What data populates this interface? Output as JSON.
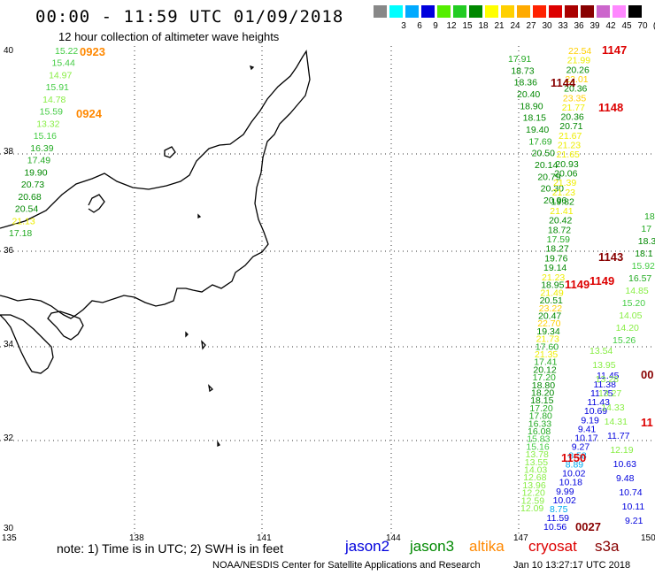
{
  "header": {
    "title": "00:00 - 11:59 UTC 01/09/2018",
    "subtitle": "12 hour collection of altimeter wave heights"
  },
  "color_scale": {
    "unit": "(ft)",
    "bins": [
      {
        "label": "",
        "color": "#888888"
      },
      {
        "label": "3",
        "color": "#00ffff"
      },
      {
        "label": "6",
        "color": "#00aaff"
      },
      {
        "label": "9",
        "color": "#0000dd"
      },
      {
        "label": "12",
        "color": "#55ee00"
      },
      {
        "label": "15",
        "color": "#22cc22"
      },
      {
        "label": "18",
        "color": "#008800"
      },
      {
        "label": "21",
        "color": "#ffff00"
      },
      {
        "label": "24",
        "color": "#ffd000"
      },
      {
        "label": "27",
        "color": "#ffaa00"
      },
      {
        "label": "30",
        "color": "#ff2200"
      },
      {
        "label": "33",
        "color": "#dd0000"
      },
      {
        "label": "36",
        "color": "#aa0000"
      },
      {
        "label": "39",
        "color": "#880000"
      },
      {
        "label": "42",
        "color": "#cc66cc"
      },
      {
        "label": "45",
        "color": "#ff88ff"
      },
      {
        "label": "70",
        "color": "#000000"
      }
    ]
  },
  "axes": {
    "lon_labels": [
      "135",
      "138",
      "141",
      "144",
      "147",
      "150"
    ],
    "lat_labels": [
      "40",
      "38",
      "36",
      "34",
      "32",
      "30"
    ]
  },
  "tracks": [
    {
      "id": "t1",
      "readings": [
        {
          "text": "15.22",
          "color": "#44cc44"
        },
        {
          "text": "15.44",
          "color": "#44cc44"
        },
        {
          "text": "14.97",
          "color": "#88ee44"
        },
        {
          "text": "15.91",
          "color": "#44cc44"
        },
        {
          "text": "14.78",
          "color": "#88ee44"
        },
        {
          "text": "15.59",
          "color": "#44cc44"
        },
        {
          "text": "13.32",
          "color": "#88ee44"
        },
        {
          "text": "15.16",
          "color": "#44cc44"
        },
        {
          "text": "16.39",
          "color": "#22aa22"
        },
        {
          "text": "17.49",
          "color": "#22aa22"
        },
        {
          "text": "19.90",
          "color": "#008800"
        },
        {
          "text": "20.73",
          "color": "#008800"
        },
        {
          "text": "20.68",
          "color": "#008800"
        },
        {
          "text": "20.54",
          "color": "#008800"
        },
        {
          "text": "21.13",
          "color": "#eeee00"
        },
        {
          "text": "17.18",
          "color": "#22aa22"
        }
      ]
    },
    {
      "id": "t2",
      "readings": [
        {
          "text": "17.91",
          "color": "#22aa22"
        },
        {
          "text": "18.73",
          "color": "#008800"
        },
        {
          "text": "18.36",
          "color": "#008800"
        },
        {
          "text": "20.40",
          "color": "#008800"
        },
        {
          "text": "18.90",
          "color": "#008800"
        },
        {
          "text": "18.15",
          "color": "#008800"
        },
        {
          "text": "19.40",
          "color": "#008800"
        },
        {
          "text": "17.69",
          "color": "#22aa22"
        },
        {
          "text": "20.50",
          "color": "#008800"
        },
        {
          "text": "20.14",
          "color": "#008800"
        },
        {
          "text": "20.79",
          "color": "#008800"
        },
        {
          "text": "20.30",
          "color": "#008800"
        },
        {
          "text": "20.96",
          "color": "#008800"
        }
      ]
    },
    {
      "id": "t3",
      "readings": [
        {
          "text": "22.54",
          "color": "#ffd000"
        },
        {
          "text": "21.99",
          "color": "#eeee00"
        },
        {
          "text": "20.26",
          "color": "#008800"
        },
        {
          "text": "22.01",
          "color": "#ffd000"
        },
        {
          "text": "20.36",
          "color": "#008800"
        },
        {
          "text": "23.35",
          "color": "#ffd000"
        },
        {
          "text": "21.77",
          "color": "#eeee00"
        },
        {
          "text": "20.36",
          "color": "#008800"
        },
        {
          "text": "20.71",
          "color": "#008800"
        },
        {
          "text": "21.67",
          "color": "#eeee00"
        },
        {
          "text": "21.23",
          "color": "#eeee00"
        },
        {
          "text": "21.65",
          "color": "#eeee00"
        },
        {
          "text": "20.93",
          "color": "#008800"
        },
        {
          "text": "20.06",
          "color": "#008800"
        },
        {
          "text": "21.39",
          "color": "#eeee00"
        },
        {
          "text": "21.23",
          "color": "#eeee00"
        },
        {
          "text": "19.82",
          "color": "#008800"
        },
        {
          "text": "21.41",
          "color": "#eeee00"
        },
        {
          "text": "20.42",
          "color": "#008800"
        },
        {
          "text": "18.72",
          "color": "#008800"
        },
        {
          "text": "17.59",
          "color": "#22aa22"
        },
        {
          "text": "18.27",
          "color": "#008800"
        },
        {
          "text": "19.76",
          "color": "#008800"
        },
        {
          "text": "19.14",
          "color": "#008800"
        }
      ]
    },
    {
      "id": "t4",
      "readings": [
        {
          "text": "21.23",
          "color": "#eeee00"
        },
        {
          "text": "18.95",
          "color": "#008800"
        },
        {
          "text": "21.49",
          "color": "#eeee00"
        },
        {
          "text": "20.51",
          "color": "#008800"
        },
        {
          "text": "23.22",
          "color": "#ffd000"
        },
        {
          "text": "20.47",
          "color": "#008800"
        },
        {
          "text": "22.70",
          "color": "#ffd000"
        },
        {
          "text": "19.34",
          "color": "#008800"
        },
        {
          "text": "21.73",
          "color": "#eeee00"
        },
        {
          "text": "17.60",
          "color": "#22aa22"
        },
        {
          "text": "21.35",
          "color": "#eeee00"
        },
        {
          "text": "17.41",
          "color": "#22aa22"
        },
        {
          "text": "20.12",
          "color": "#008800"
        },
        {
          "text": "17.20",
          "color": "#22aa22"
        },
        {
          "text": "18.80",
          "color": "#008800"
        },
        {
          "text": "18.20",
          "color": "#008800"
        },
        {
          "text": "18.15",
          "color": "#008800"
        },
        {
          "text": "17.20",
          "color": "#22aa22"
        },
        {
          "text": "17.80",
          "color": "#22aa22"
        },
        {
          "text": "16.33",
          "color": "#22aa22"
        },
        {
          "text": "16.08",
          "color": "#22aa22"
        },
        {
          "text": "15.83",
          "color": "#44cc44"
        },
        {
          "text": "15.16",
          "color": "#44cc44"
        },
        {
          "text": "13.78",
          "color": "#88ee44"
        },
        {
          "text": "13.55",
          "color": "#88ee44"
        },
        {
          "text": "14.03",
          "color": "#88ee44"
        },
        {
          "text": "12.68",
          "color": "#88ee44"
        },
        {
          "text": "13.96",
          "color": "#88ee44"
        },
        {
          "text": "12.20",
          "color": "#88ee44"
        },
        {
          "text": "12.59",
          "color": "#88ee44"
        },
        {
          "text": "12.09",
          "color": "#88ee44"
        }
      ]
    },
    {
      "id": "t5",
      "readings": [
        {
          "text": "11.45",
          "color": "#0000dd"
        },
        {
          "text": "11.38",
          "color": "#0000dd"
        },
        {
          "text": "11.75",
          "color": "#0000dd"
        },
        {
          "text": "11.43",
          "color": "#0000dd"
        },
        {
          "text": "10.69",
          "color": "#0000dd"
        },
        {
          "text": "9.19",
          "color": "#0000dd"
        },
        {
          "text": "9.41",
          "color": "#0000dd"
        },
        {
          "text": "10.17",
          "color": "#0000dd"
        },
        {
          "text": "9.27",
          "color": "#0000dd"
        },
        {
          "text": "8.58",
          "color": "#00aaee"
        },
        {
          "text": "8.89",
          "color": "#00aaee"
        },
        {
          "text": "10.02",
          "color": "#0000dd"
        },
        {
          "text": "10.18",
          "color": "#0000dd"
        },
        {
          "text": "9.99",
          "color": "#0000dd"
        },
        {
          "text": "10.02",
          "color": "#0000dd"
        },
        {
          "text": "8.75",
          "color": "#00aaee"
        },
        {
          "text": "11.59",
          "color": "#0000dd"
        },
        {
          "text": "10.56",
          "color": "#0000dd"
        }
      ]
    },
    {
      "id": "t6",
      "readings": [
        {
          "text": "13.54",
          "color": "#88ee44"
        },
        {
          "text": "13.95",
          "color": "#88ee44"
        },
        {
          "text": "13.28",
          "color": "#88ee44"
        },
        {
          "text": "13.27",
          "color": "#88ee44"
        },
        {
          "text": "14.33",
          "color": "#88ee44"
        },
        {
          "text": "14.31",
          "color": "#88ee44"
        },
        {
          "text": "11.77",
          "color": "#0000dd"
        },
        {
          "text": "12.19",
          "color": "#88ee44"
        },
        {
          "text": "10.63",
          "color": "#0000dd"
        },
        {
          "text": "9.48",
          "color": "#0000dd"
        },
        {
          "text": "10.74",
          "color": "#0000dd"
        },
        {
          "text": "10.11",
          "color": "#0000dd"
        },
        {
          "text": "9.21",
          "color": "#0000dd"
        }
      ]
    },
    {
      "id": "t7",
      "readings": [
        {
          "text": "18",
          "color": "#22aa22"
        },
        {
          "text": "17",
          "color": "#22aa22"
        },
        {
          "text": "18.3",
          "color": "#008800"
        },
        {
          "text": "18.1",
          "color": "#008800"
        },
        {
          "text": "15.92",
          "color": "#44cc44"
        },
        {
          "text": "16.57",
          "color": "#22aa22"
        },
        {
          "text": "14.85",
          "color": "#88ee44"
        },
        {
          "text": "15.20",
          "color": "#44cc44"
        },
        {
          "text": "14.05",
          "color": "#88ee44"
        },
        {
          "text": "14.20",
          "color": "#88ee44"
        },
        {
          "text": "15.26",
          "color": "#44cc44"
        }
      ]
    }
  ],
  "pass_times": [
    {
      "text": "0923",
      "color": "#ff8800"
    },
    {
      "text": "0924",
      "color": "#ff8800"
    },
    {
      "text": "1147",
      "color": "#dd0000"
    },
    {
      "text": "1144",
      "color": "#880000"
    },
    {
      "text": "1148",
      "color": "#dd0000"
    },
    {
      "text": "1143",
      "color": "#880000"
    },
    {
      "text": "1149",
      "color": "#dd0000"
    },
    {
      "text": "1149",
      "color": "#dd0000"
    },
    {
      "text": "1150",
      "color": "#dd0000"
    },
    {
      "text": "0027",
      "color": "#880000"
    },
    {
      "text": "00",
      "color": "#880000"
    },
    {
      "text": "11",
      "color": "#dd0000"
    }
  ],
  "footer": {
    "note": "note:  1) Time is in UTC;  2) SWH is in feet",
    "satellites": [
      {
        "name": "jason2",
        "color": "#0000dd"
      },
      {
        "name": "jason3",
        "color": "#008800"
      },
      {
        "name": "altika",
        "color": "#ff8800"
      },
      {
        "name": "cryosat",
        "color": "#dd0000"
      },
      {
        "name": "s3a",
        "color": "#880000"
      }
    ],
    "credit": "NOAA/NESDIS Center for Satellite Applications and Research",
    "timestamp": "Jan 10 13:27:17 UTC 2018"
  }
}
